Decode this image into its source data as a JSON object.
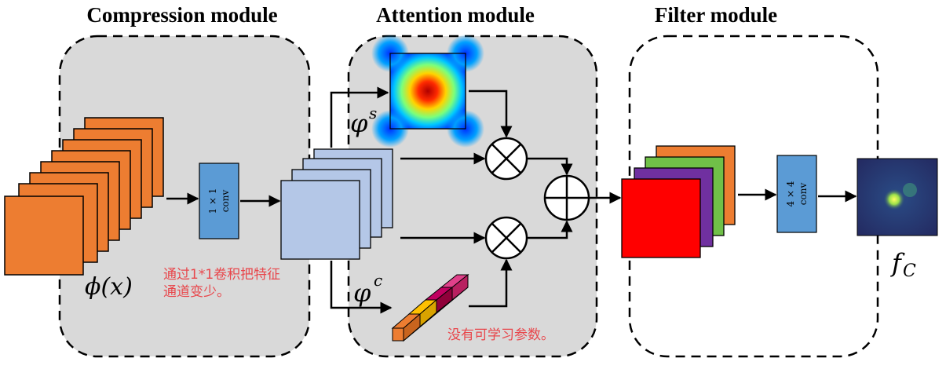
{
  "modules": {
    "compression": {
      "title": "Compression module"
    },
    "attention": {
      "title": "Attention module"
    },
    "filter": {
      "title": "Filter module"
    }
  },
  "labels": {
    "phi_x": "ϕ(x)",
    "phi_s_base": "φ",
    "phi_s_sup": "s",
    "phi_c_base": "φ",
    "phi_c_sup": "c",
    "fc_base": "f",
    "fc_sub": "C",
    "conv1_size": "1 × 1",
    "conv1_name": "conv",
    "conv2_size": "4 × 4",
    "conv2_name": "conv"
  },
  "notes": {
    "compression_line1": "通过1*1卷积把特征",
    "compression_line2": "通道变少。",
    "attention": "没有可学习参数。"
  },
  "operators": {
    "multiply_top": "multiply",
    "multiply_bottom": "multiply",
    "add": "add"
  },
  "colors": {
    "panel_fill": "#d9d9d9",
    "input_features": "#ed7d31",
    "conv_block": "#5b9bd5",
    "compressed_features": "#b4c7e7",
    "filter_stack": [
      "#ed7d31",
      "#70c048",
      "#7030a0",
      "#ff0000"
    ],
    "note_text": "#e8474c"
  }
}
